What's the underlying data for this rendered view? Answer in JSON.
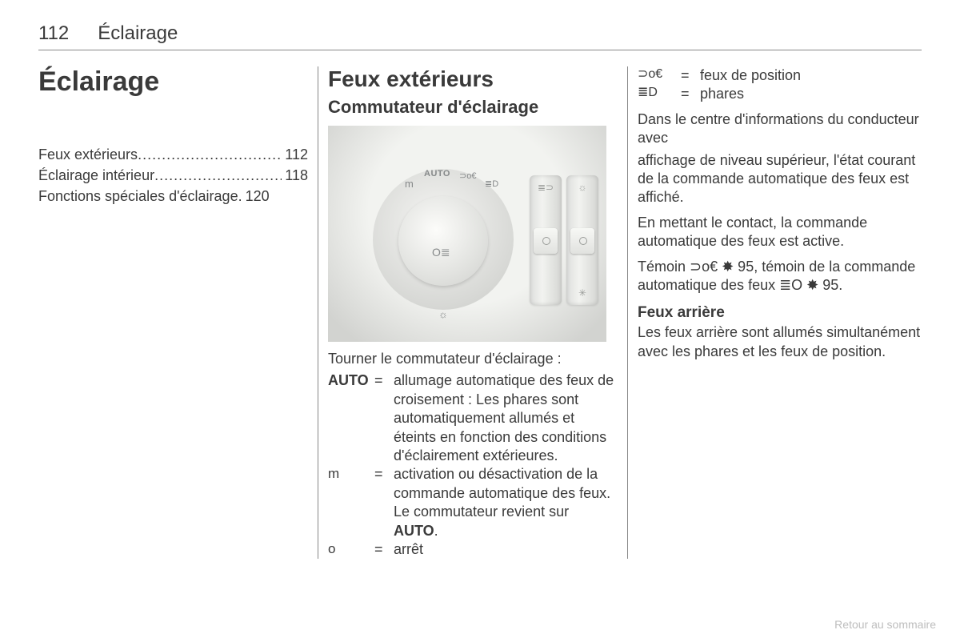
{
  "header": {
    "page_number": "112",
    "section": "Éclairage"
  },
  "col1": {
    "main_title": "Éclairage",
    "toc": [
      {
        "label": "Feux extérieurs",
        "page": "112"
      },
      {
        "label": "Éclairage intérieur",
        "page": "118"
      },
      {
        "label": "Fonctions spéciales d'éclairage",
        "page": "120"
      }
    ]
  },
  "col2": {
    "h1": "Feux extérieurs",
    "h2": "Commutateur d'éclairage",
    "figure": {
      "dial_labels": {
        "auto": "AUTO",
        "off": "m"
      },
      "dial_pos_icon": "⊃o€",
      "dial_headlamp_icon": "≣D",
      "fog_icon": "O≣",
      "brightness_icon": "☼"
    },
    "caption": "Tourner le commutateur d'éclairage :",
    "defs": [
      {
        "sym": "AUTO",
        "sym_bold": true,
        "desc": "allumage automatique des feux de croisement : Les phares sont automatique­ment allumés et éteints en fonction des conditions d'éclairement extérieures."
      },
      {
        "sym": "m",
        "sym_bold": false,
        "desc_html": "activation ou désactivation de la commande automa­tique des feux. Le commu­tateur revient sur <b>AUTO</b>."
      },
      {
        "sym": "o",
        "sym_bold": false,
        "desc": "arrêt"
      }
    ]
  },
  "col3": {
    "top_defs": [
      {
        "sym": "⊃o€",
        "desc": "feux de position"
      },
      {
        "sym": "≣D",
        "desc": "phares"
      }
    ],
    "para1": "Dans le centre d'informations du con­ducteur avec",
    "para2": "affichage de niveau supérieur, l'état courant de la commande automati­que des feux est affiché.",
    "para3": "En mettant le contact, la commande automatique des feux est active.",
    "para4": "Témoin ⊃o€ ✸ 95, témoin de la com­mande automatique des feux ≣O ✸ 95.",
    "h3": "Feux arrière",
    "para5": "Les feux arrière sont allumés simul­tanément avec les phares et les feux de position."
  },
  "footer": {
    "link": "Retour au sommaire"
  }
}
